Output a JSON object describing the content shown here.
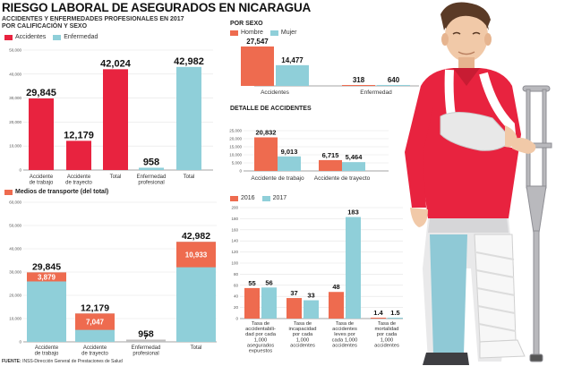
{
  "header": {
    "title": "RIESGO LABORAL DE ASEGURADOS EN NICARAGUA",
    "subtitle_1": "ACCIDENTES Y ENFERMEDADES PROFESIONALES EN 2017",
    "subtitle_2": "POR CALIFICACIÓN Y SEXO"
  },
  "colors": {
    "accidentes": "#e8233f",
    "enfermedad": "#8fcfd9",
    "hombre": "#ee6b4f",
    "mujer": "#8fcfd9",
    "y2016": "#ee6b4f",
    "y2017": "#8fcfd9",
    "transporte": "#ee6b4f"
  },
  "source": {
    "label": "FUENTE:",
    "text": "INSS-Dirección General de Prestaciones de Salud"
  },
  "illustration": "injured-worker-with-crutch-icon",
  "chart_data": [
    {
      "id": "calificacion",
      "type": "bar",
      "legend": [
        "Accidentes",
        "Enfermedad"
      ],
      "categories": [
        "Accidente de trabajo",
        "Accidente de trayecto",
        "Total",
        "Enfermedad profesional",
        "Total"
      ],
      "series_index": [
        0,
        0,
        0,
        1,
        1
      ],
      "values": [
        29845,
        12179,
        42024,
        958,
        42982
      ],
      "value_labels": [
        "29,845",
        "12,179",
        "42,024",
        "958",
        "42,982"
      ],
      "ylim": [
        0,
        50000
      ],
      "yticks": [
        "0",
        "10,000",
        "20,000",
        "30,000",
        "40,000",
        "50,000"
      ]
    },
    {
      "id": "transporte",
      "type": "bar",
      "title": "Medios de transporte (del total)",
      "categories": [
        "Accidente de trabajo",
        "Accidente de trayecto",
        "Enfermedad profesional",
        "Total"
      ],
      "totals": [
        29845,
        12179,
        958,
        42982
      ],
      "total_labels": [
        "29,845",
        "12,179",
        "958",
        "42,982"
      ],
      "transport": [
        3879,
        7047,
        7,
        10933
      ],
      "transport_labels": [
        "3,879",
        "7,047",
        "7",
        "10,933"
      ],
      "ylim": [
        0,
        60000
      ],
      "yticks": [
        "0",
        "10,000",
        "20,000",
        "30,000",
        "40,000",
        "50,000",
        "60,000"
      ]
    },
    {
      "id": "sexo",
      "type": "bar",
      "title": "POR SEXO",
      "legend": [
        "Hombre",
        "Mujer"
      ],
      "categories": [
        "Accidentes",
        "Enfermedad"
      ],
      "series": [
        {
          "name": "Hombre",
          "values": [
            27547,
            318
          ],
          "labels": [
            "27,547",
            "318"
          ]
        },
        {
          "name": "Mujer",
          "values": [
            14477,
            640
          ],
          "labels": [
            "14,477",
            "640"
          ]
        }
      ],
      "ylim": [
        0,
        30000
      ]
    },
    {
      "id": "detalle",
      "type": "bar",
      "title": "DETALLE DE ACCIDENTES",
      "categories": [
        "Accidente de trabajo",
        "Accidente de trayecto"
      ],
      "series": [
        {
          "values": [
            20832,
            6715
          ],
          "labels": [
            "20,832",
            "6,715"
          ]
        },
        {
          "values": [
            9013,
            5464
          ],
          "labels": [
            "9,013",
            "5,464"
          ]
        }
      ],
      "ylim": [
        0,
        25000
      ],
      "yticks": [
        "0",
        "5,000",
        "10,000",
        "15,000",
        "20,000",
        "25,000"
      ]
    },
    {
      "id": "tasas",
      "type": "bar",
      "legend": [
        "2016",
        "2017"
      ],
      "categories": [
        [
          "Tasa de",
          "accidentabili-",
          "dad por cada",
          "1,000",
          "asegurados",
          "expuestos"
        ],
        [
          "Tasa de",
          "incapacidad",
          "por cada",
          "1,000",
          "accidentes"
        ],
        [
          "Tasa de",
          "accidentes",
          "leves por",
          "cada 1,000",
          "accidentes"
        ],
        [
          "Tasa de",
          "mortalidad",
          "por cada",
          "1,000",
          "accidentes"
        ]
      ],
      "series": [
        {
          "name": "2016",
          "values": [
            55,
            37,
            48,
            1.4
          ],
          "labels": [
            "55",
            "37",
            "48",
            "1.4"
          ]
        },
        {
          "name": "2017",
          "values": [
            56,
            33,
            183,
            1.5
          ],
          "labels": [
            "56",
            "33",
            "183",
            "1.5"
          ]
        }
      ],
      "ylim": [
        0,
        200
      ],
      "yticks": [
        "0",
        "20",
        "40",
        "60",
        "80",
        "100",
        "120",
        "140",
        "160",
        "180",
        "200"
      ]
    }
  ]
}
